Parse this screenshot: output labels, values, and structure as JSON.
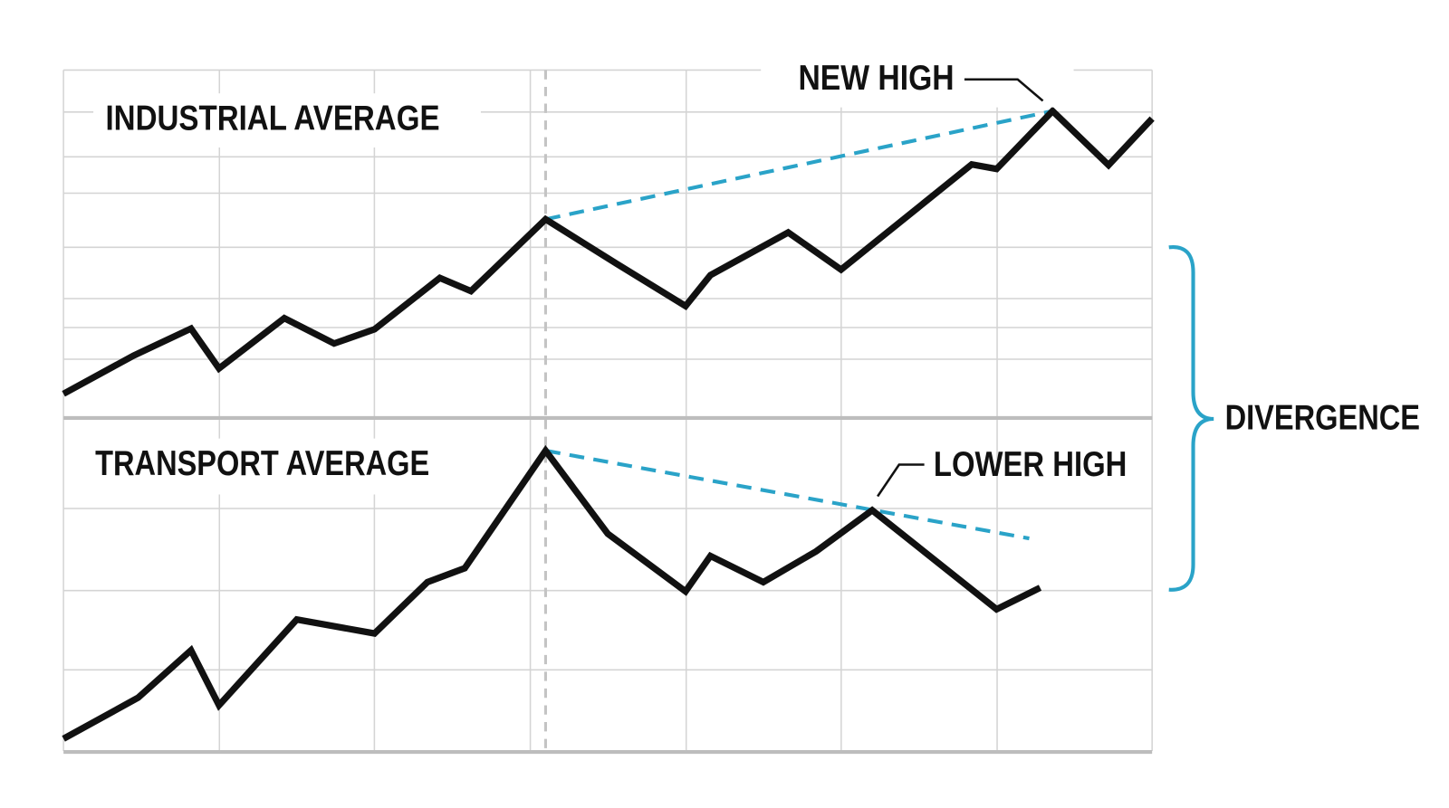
{
  "chart_data": [
    {
      "type": "line",
      "title": "INDUSTRIAL AVERAGE",
      "x": [
        0,
        2.25,
        4.1,
        5.0,
        7.1,
        8.7,
        10.0,
        12.1,
        13.1,
        15.5,
        17.8,
        20.0,
        20.8,
        23.3,
        25.0,
        29.2,
        30.0,
        31.8,
        33.6,
        35.0
      ],
      "values": [
        6.7,
        17.7,
        25.5,
        14.0,
        28.5,
        21.2,
        25.3,
        40.1,
        36.3,
        57.0,
        44.1,
        32.0,
        40.9,
        53.2,
        42.5,
        72.8,
        71.5,
        88.2,
        72.6,
        86.0
      ],
      "color": "#111111",
      "xlim": [
        0,
        35
      ],
      "ylim": [
        0,
        100
      ],
      "vline": 15.5,
      "trend": {
        "x": [
          15.5,
          31.8
        ],
        "values": [
          57.0,
          88.2
        ],
        "color": "#2aa3c8"
      },
      "annotation": "NEW HIGH"
    },
    {
      "type": "line",
      "title": "TRANSPORT AVERAGE",
      "x": [
        0,
        2.4,
        4.1,
        5.0,
        7.5,
        10.0,
        11.7,
        12.9,
        15.5,
        17.5,
        20.0,
        20.8,
        22.5,
        24.2,
        26.0,
        30.0,
        31.4
      ],
      "values": [
        3.7,
        16.1,
        30.4,
        13.8,
        39.7,
        35.5,
        51.0,
        55.2,
        90.7,
        65.6,
        48.2,
        58.9,
        51.0,
        60.3,
        72.7,
        42.8,
        49.3
      ],
      "color": "#111111",
      "xlim": [
        0,
        35
      ],
      "ylim": [
        0,
        100
      ],
      "vline": 15.5,
      "trend": {
        "x": [
          15.5,
          31.05
        ],
        "values": [
          90.7,
          64.2
        ],
        "color": "#2aa3c8"
      },
      "annotation": "LOWER HIGH"
    }
  ],
  "divergence_label": "DIVERGENCE"
}
